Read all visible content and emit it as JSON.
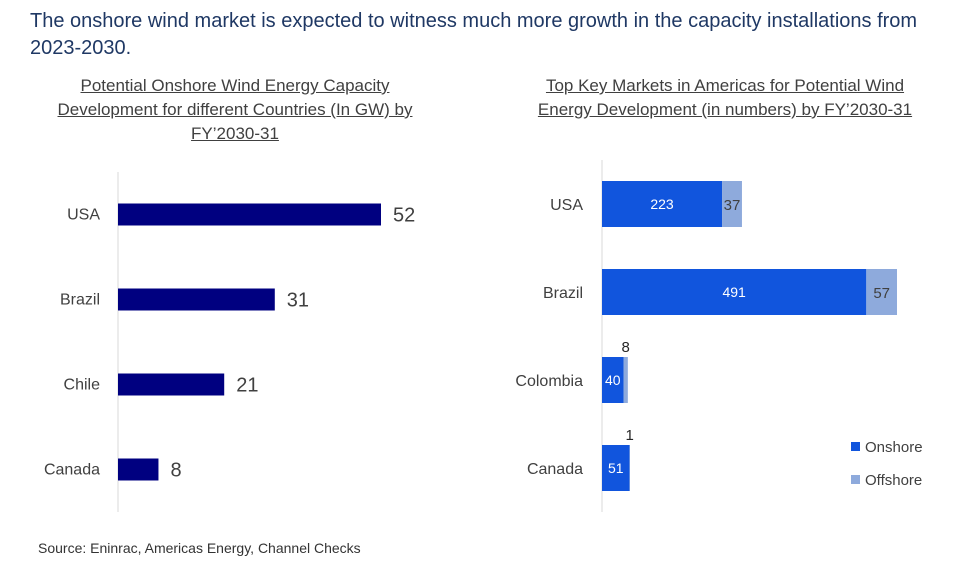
{
  "headline": "The onshore wind market is expected to witness much more growth in the capacity installations from 2023-2030.",
  "source": "Source: Eninrac, Americas Energy, Channel Checks",
  "colors": {
    "bar": "#000080",
    "onshore": "#1155dd",
    "offshore": "#8eaadc",
    "axis": "#d9d9d9"
  },
  "chart_data": [
    {
      "type": "bar",
      "orientation": "horizontal",
      "title": "Potential Onshore Wind Energy Capacity Development for different Countries (In GW) by FY’2030-31",
      "categories": [
        "USA",
        "Brazil",
        "Chile",
        "Canada"
      ],
      "values": [
        52,
        31,
        21,
        8
      ],
      "xlim": [
        0,
        52
      ],
      "grid": false,
      "legend": "none"
    },
    {
      "type": "bar",
      "orientation": "horizontal",
      "stacked": true,
      "title": "Top Key Markets in Americas for Potential Wind Energy Development (in numbers) by FY’2030-31",
      "categories": [
        "USA",
        "Brazil",
        "Colombia",
        "Canada"
      ],
      "series": [
        {
          "name": "Onshore",
          "values": [
            223,
            491,
            40,
            51
          ]
        },
        {
          "name": "Offshore",
          "values": [
            37,
            57,
            8,
            1
          ]
        }
      ],
      "xlim": [
        0,
        548
      ],
      "grid": false,
      "legend": "bottom-right"
    }
  ]
}
